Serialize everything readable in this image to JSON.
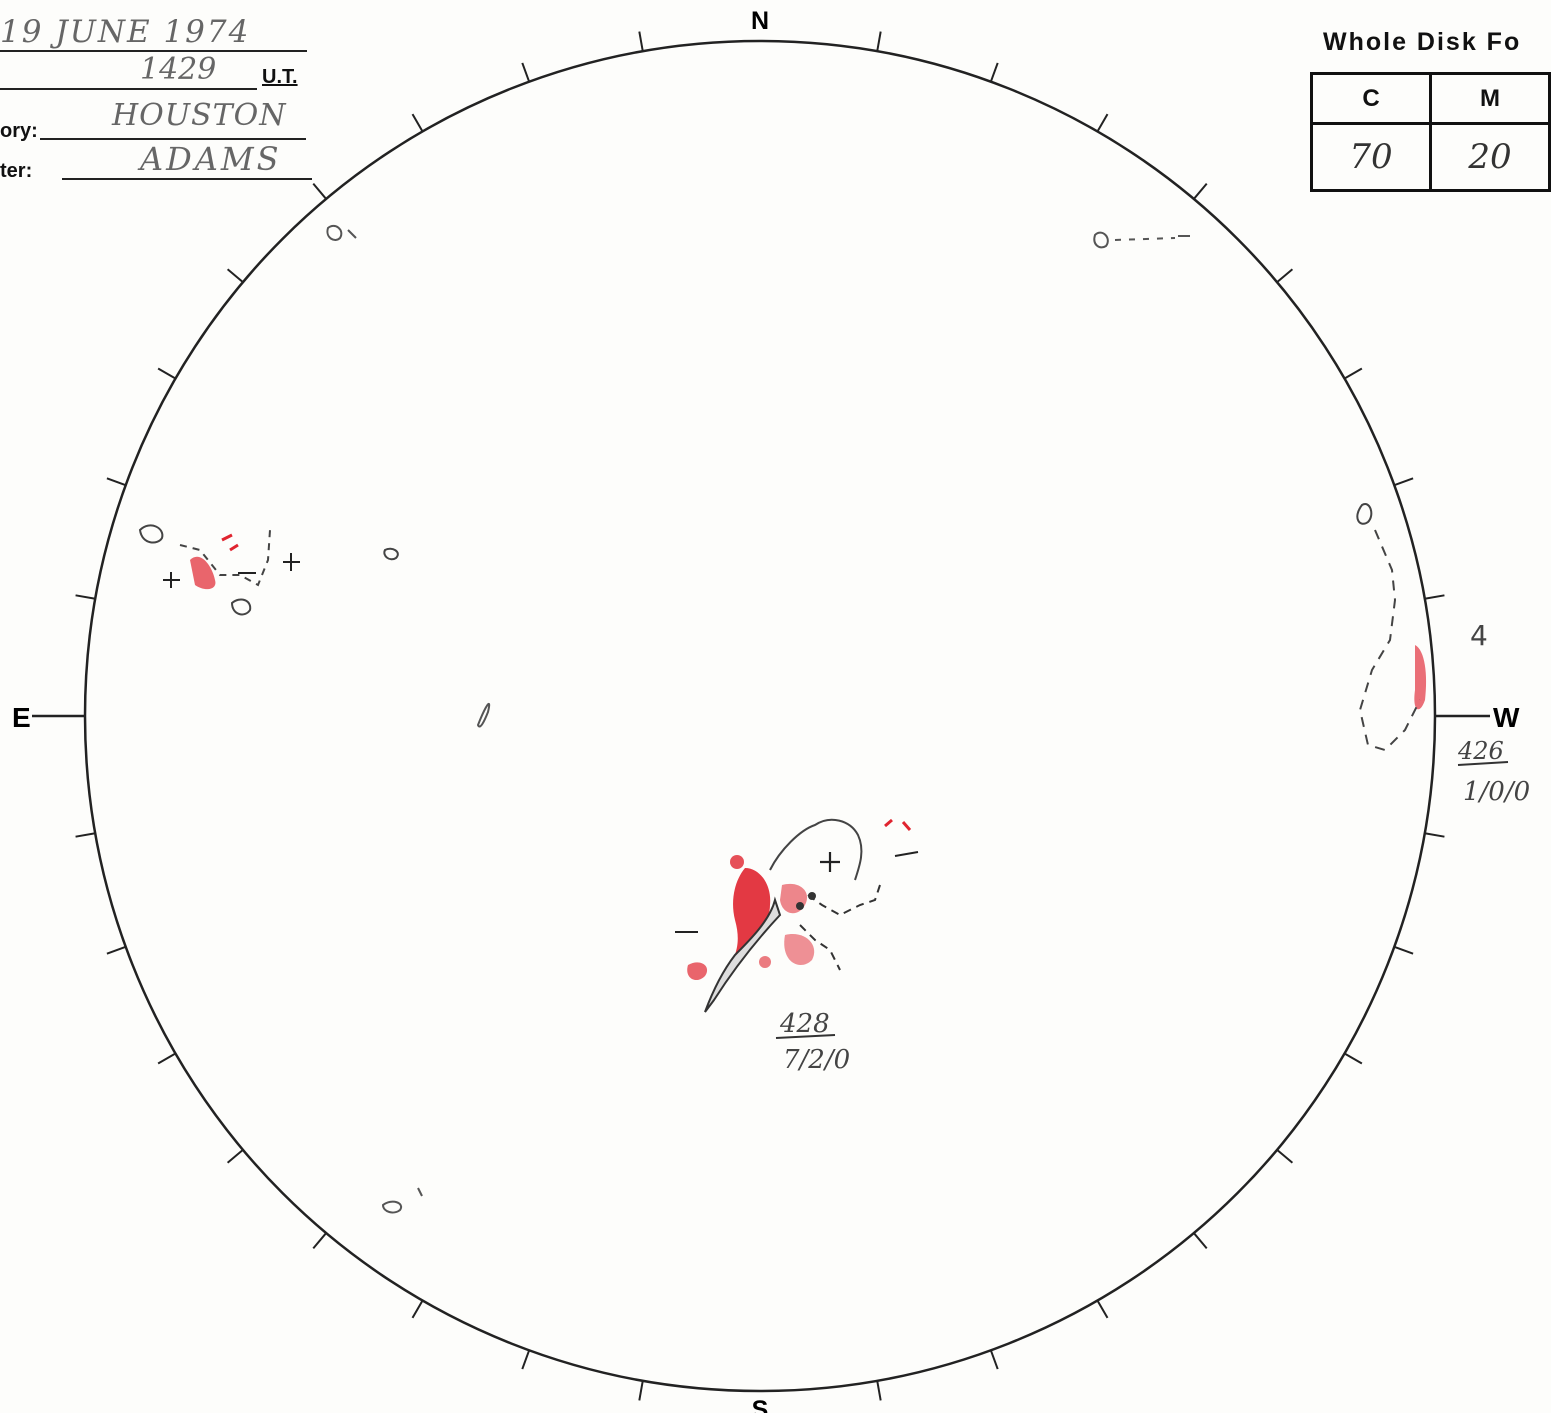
{
  "header": {
    "date_value": "19 JUNE 1974",
    "time_value": "1429",
    "time_unit": "U.T.",
    "observatory_label": "ory:",
    "observatory_value": "HOUSTON",
    "reporter_label": "ter:",
    "reporter_value": "ADAMS"
  },
  "forecast": {
    "title": "Whole Disk Fo",
    "columns": [
      "C",
      "M"
    ],
    "values": [
      "70",
      "20"
    ]
  },
  "compass": {
    "north": "N",
    "south": "S",
    "east": "E",
    "west": "W"
  },
  "regions": [
    {
      "number": "428",
      "classification": "7/2/0"
    },
    {
      "number": "426",
      "classification": "1/0/0"
    }
  ],
  "limb_annotation": "4",
  "colors": {
    "plage_red": "#e0242f",
    "ink": "#111111",
    "pencil": "#555555"
  }
}
